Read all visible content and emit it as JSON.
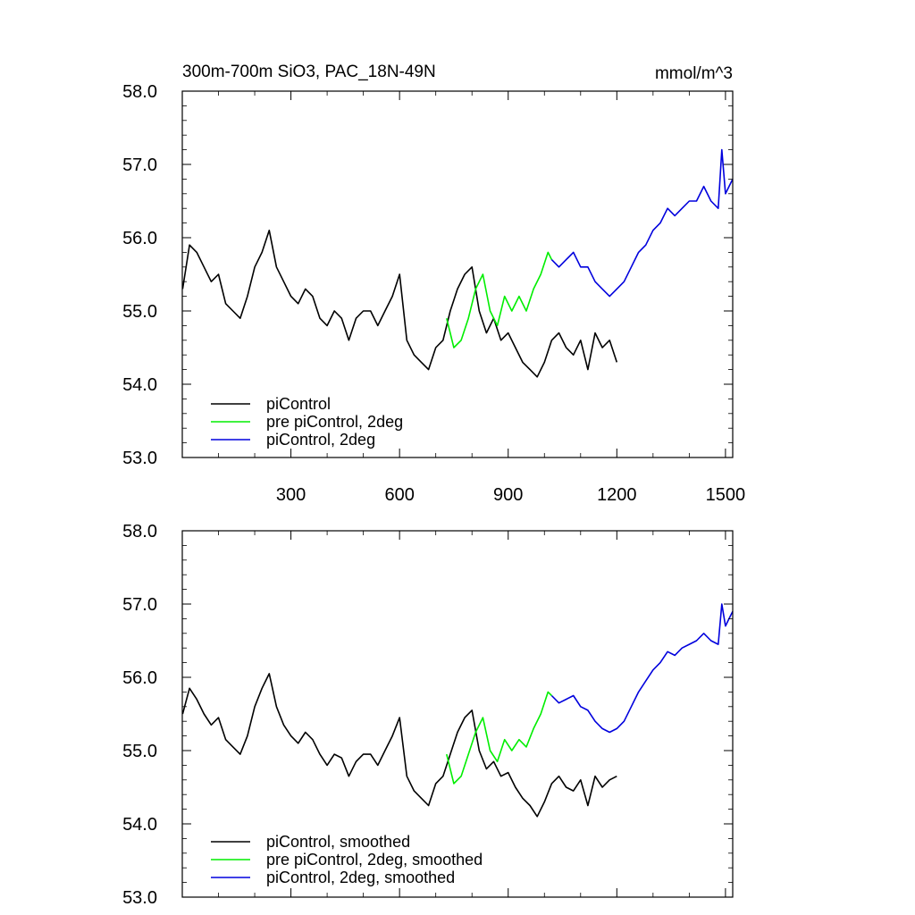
{
  "chart_data": [
    {
      "type": "line",
      "title": "300m-700m SiO3, PAC_18N-49N",
      "units": "mmol/m^3",
      "xlabel": "",
      "ylabel": "",
      "xlim": [
        0,
        1520
      ],
      "ylim": [
        53.0,
        58.0
      ],
      "xticks": [
        300,
        600,
        900,
        1200,
        1500
      ],
      "xtick_labels": [
        "300",
        "600",
        "900",
        "1200",
        "1500"
      ],
      "yticks": [
        53.0,
        54.0,
        55.0,
        56.0,
        57.0,
        58.0
      ],
      "ytick_labels": [
        "53.0",
        "54.0",
        "55.0",
        "56.0",
        "57.0",
        "58.0"
      ],
      "legend_position": "bottom-left",
      "series": [
        {
          "name": "piControl",
          "color": "#000000",
          "x": [
            1,
            20,
            40,
            60,
            80,
            100,
            120,
            140,
            160,
            180,
            200,
            220,
            240,
            260,
            280,
            300,
            320,
            340,
            360,
            380,
            400,
            420,
            440,
            460,
            480,
            500,
            520,
            540,
            560,
            580,
            600,
            620,
            640,
            660,
            680,
            700,
            720,
            740,
            760,
            780,
            800,
            820,
            840,
            860,
            880,
            900,
            920,
            940,
            960,
            980,
            1000,
            1020,
            1040,
            1060,
            1080,
            1100,
            1120,
            1140,
            1160,
            1180,
            1200
          ],
          "values": [
            55.3,
            55.9,
            55.8,
            55.6,
            55.4,
            55.5,
            55.1,
            55.0,
            54.9,
            55.2,
            55.6,
            55.8,
            56.1,
            55.6,
            55.4,
            55.2,
            55.1,
            55.3,
            55.2,
            54.9,
            54.8,
            55.0,
            54.9,
            54.6,
            54.9,
            55.0,
            55.0,
            54.8,
            55.0,
            55.2,
            55.5,
            54.6,
            54.4,
            54.3,
            54.2,
            54.5,
            54.6,
            55.0,
            55.3,
            55.5,
            55.6,
            55.0,
            54.7,
            54.9,
            54.6,
            54.7,
            54.5,
            54.3,
            54.2,
            54.1,
            54.3,
            54.6,
            54.7,
            54.5,
            54.4,
            54.6,
            54.2,
            54.7,
            54.5,
            54.6,
            54.3
          ]
        },
        {
          "name": "pre piControl, 2deg",
          "color": "#00ee00",
          "x": [
            730,
            750,
            770,
            790,
            810,
            830,
            850,
            870,
            890,
            910,
            930,
            950,
            970,
            990,
            1010,
            1020
          ],
          "values": [
            54.9,
            54.5,
            54.6,
            54.9,
            55.3,
            55.5,
            55.0,
            54.8,
            55.2,
            55.0,
            55.2,
            55.0,
            55.3,
            55.5,
            55.8,
            55.7
          ]
        },
        {
          "name": "piControl, 2deg",
          "color": "#0000dd",
          "x": [
            1020,
            1040,
            1060,
            1080,
            1100,
            1120,
            1140,
            1160,
            1180,
            1200,
            1220,
            1240,
            1260,
            1280,
            1300,
            1320,
            1340,
            1360,
            1380,
            1400,
            1420,
            1440,
            1460,
            1480,
            1490,
            1500,
            1510,
            1520
          ],
          "values": [
            55.7,
            55.6,
            55.7,
            55.8,
            55.6,
            55.6,
            55.4,
            55.3,
            55.2,
            55.3,
            55.4,
            55.6,
            55.8,
            55.9,
            56.1,
            56.2,
            56.4,
            56.3,
            56.4,
            56.5,
            56.5,
            56.7,
            56.5,
            56.4,
            57.2,
            56.6,
            56.7,
            56.8
          ]
        }
      ]
    },
    {
      "type": "line",
      "title": "",
      "xlabel": "",
      "ylabel": "",
      "xlim": [
        0,
        1520
      ],
      "ylim": [
        53.0,
        58.0
      ],
      "xticks": [
        300,
        600,
        900,
        1200,
        1500
      ],
      "yticks": [
        53.0,
        54.0,
        55.0,
        56.0,
        57.0,
        58.0
      ],
      "ytick_labels": [
        "53.0",
        "54.0",
        "55.0",
        "56.0",
        "57.0",
        "58.0"
      ],
      "legend_position": "bottom-left",
      "series": [
        {
          "name": "piControl, smoothed",
          "color": "#000000",
          "x": [
            1,
            20,
            40,
            60,
            80,
            100,
            120,
            140,
            160,
            180,
            200,
            220,
            240,
            260,
            280,
            300,
            320,
            340,
            360,
            380,
            400,
            420,
            440,
            460,
            480,
            500,
            520,
            540,
            560,
            580,
            600,
            620,
            640,
            660,
            680,
            700,
            720,
            740,
            760,
            780,
            800,
            820,
            840,
            860,
            880,
            900,
            920,
            940,
            960,
            980,
            1000,
            1020,
            1040,
            1060,
            1080,
            1100,
            1120,
            1140,
            1160,
            1180,
            1200
          ],
          "values": [
            55.5,
            55.85,
            55.7,
            55.5,
            55.35,
            55.45,
            55.15,
            55.05,
            54.95,
            55.2,
            55.6,
            55.85,
            56.05,
            55.6,
            55.35,
            55.2,
            55.1,
            55.25,
            55.15,
            54.95,
            54.8,
            54.95,
            54.9,
            54.65,
            54.85,
            54.95,
            54.95,
            54.8,
            55.0,
            55.2,
            55.45,
            54.65,
            54.45,
            54.35,
            54.25,
            54.55,
            54.65,
            54.95,
            55.25,
            55.45,
            55.55,
            55.0,
            54.75,
            54.85,
            54.65,
            54.7,
            54.5,
            54.35,
            54.25,
            54.1,
            54.3,
            54.55,
            54.65,
            54.5,
            54.45,
            54.6,
            54.25,
            54.65,
            54.5,
            54.6,
            54.65
          ]
        },
        {
          "name": "pre piControl, 2deg, smoothed",
          "color": "#00ee00",
          "x": [
            730,
            750,
            770,
            790,
            810,
            830,
            850,
            870,
            890,
            910,
            930,
            950,
            970,
            990,
            1010,
            1020
          ],
          "values": [
            54.95,
            54.55,
            54.65,
            54.95,
            55.25,
            55.45,
            55.0,
            54.85,
            55.15,
            55.0,
            55.15,
            55.05,
            55.3,
            55.5,
            55.8,
            55.75
          ]
        },
        {
          "name": "piControl, 2deg, smoothed",
          "color": "#0000dd",
          "x": [
            1020,
            1040,
            1060,
            1080,
            1100,
            1120,
            1140,
            1160,
            1180,
            1200,
            1220,
            1240,
            1260,
            1280,
            1300,
            1320,
            1340,
            1360,
            1380,
            1400,
            1420,
            1440,
            1460,
            1480,
            1490,
            1500,
            1510,
            1520
          ],
          "values": [
            55.75,
            55.65,
            55.7,
            55.75,
            55.6,
            55.55,
            55.4,
            55.3,
            55.25,
            55.3,
            55.4,
            55.6,
            55.8,
            55.95,
            56.1,
            56.2,
            56.35,
            56.3,
            56.4,
            56.45,
            56.5,
            56.6,
            56.5,
            56.45,
            57.0,
            56.7,
            56.8,
            56.9
          ]
        }
      ]
    }
  ]
}
